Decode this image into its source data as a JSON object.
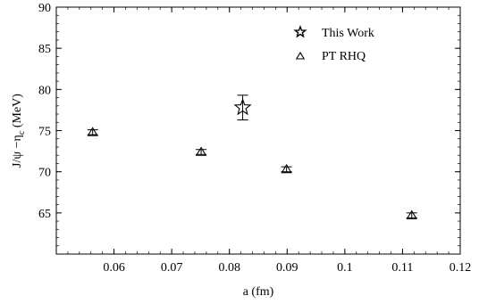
{
  "chart_data": {
    "type": "scatter",
    "xlabel": "a (fm)",
    "ylabel": "J/ψ −η",
    "ylabel_sub": "c",
    "ylabel_unit": " (MeV)",
    "xlim": [
      0.05,
      0.12
    ],
    "ylim": [
      60,
      90
    ],
    "xticks": [
      0.06,
      0.07,
      0.08,
      0.09,
      0.1,
      0.11,
      0.12
    ],
    "xtick_labels": [
      "0.06",
      "0.07",
      "0.08",
      "0.09",
      "0.1",
      "0.11",
      "0.12"
    ],
    "yticks": [
      65,
      70,
      75,
      80,
      85,
      90
    ],
    "ytick_labels": [
      "65",
      "70",
      "75",
      "80",
      "85",
      "90"
    ],
    "grid": false,
    "legend_position": "top-right",
    "series": [
      {
        "name": "This Work",
        "marker": "star",
        "points": [
          {
            "x": 0.0823,
            "y": 77.8,
            "yerr": 1.5
          }
        ]
      },
      {
        "name": "PT RHQ",
        "marker": "triangle",
        "points": [
          {
            "x": 0.0563,
            "y": 74.8,
            "yerr": 0.3
          },
          {
            "x": 0.0751,
            "y": 72.4,
            "yerr": 0.3
          },
          {
            "x": 0.0899,
            "y": 70.3,
            "yerr": 0.3
          },
          {
            "x": 0.1116,
            "y": 64.7,
            "yerr": 0.3
          }
        ]
      }
    ]
  }
}
